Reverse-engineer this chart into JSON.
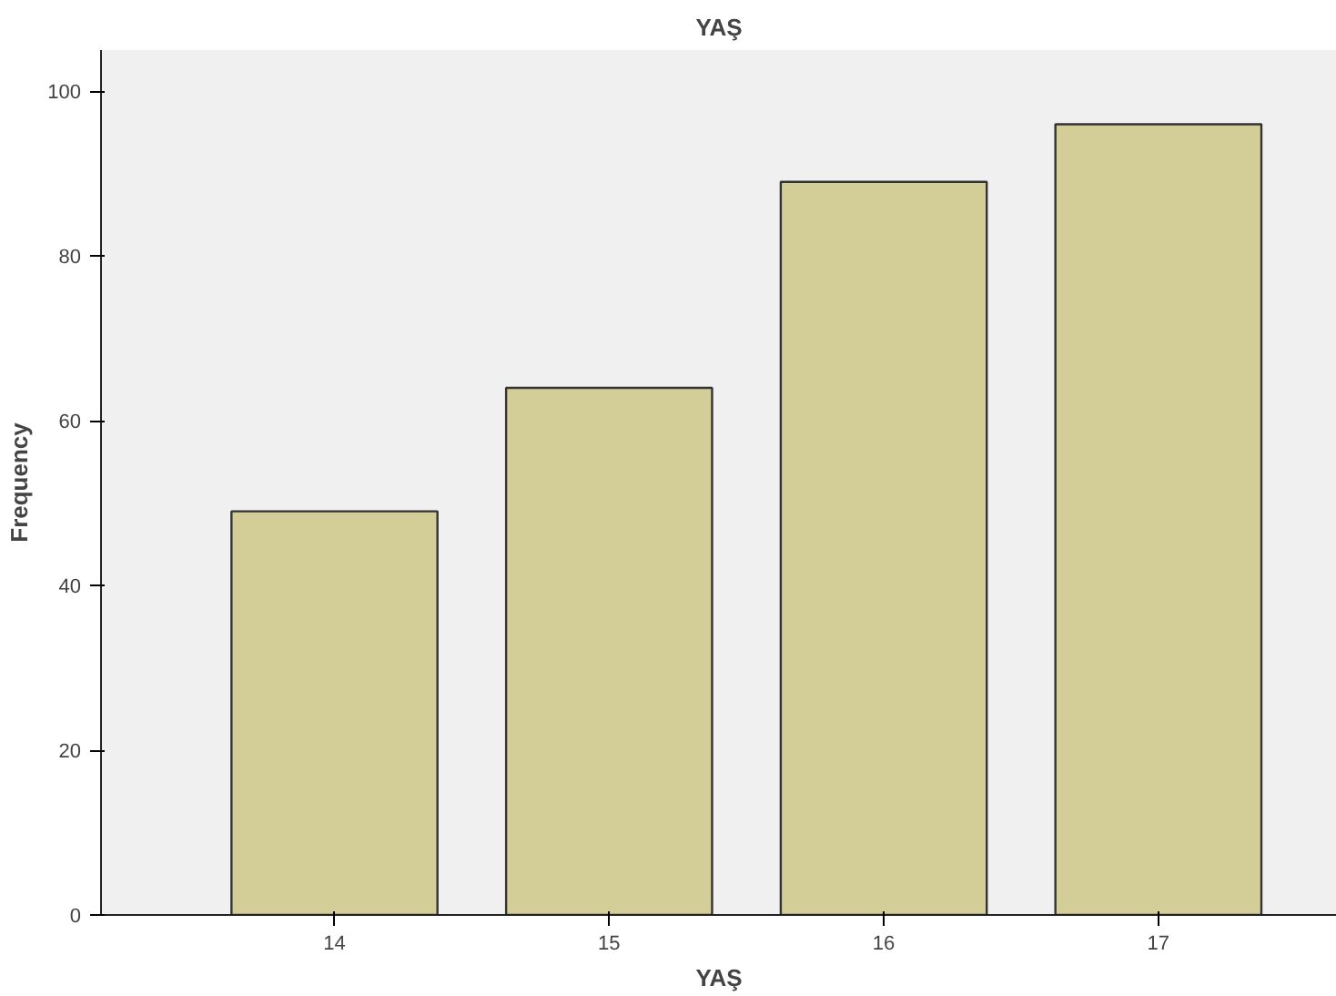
{
  "chart_data": {
    "type": "bar",
    "title": "YAŞ",
    "xlabel": "YAŞ",
    "ylabel": "Frequency",
    "categories": [
      "14",
      "15",
      "16",
      "17"
    ],
    "values": [
      49,
      64,
      89,
      96
    ],
    "color": "#d3ce97",
    "ylim": [
      0,
      105
    ],
    "yticks": [
      0,
      20,
      40,
      60,
      80,
      100
    ],
    "grid": false
  }
}
